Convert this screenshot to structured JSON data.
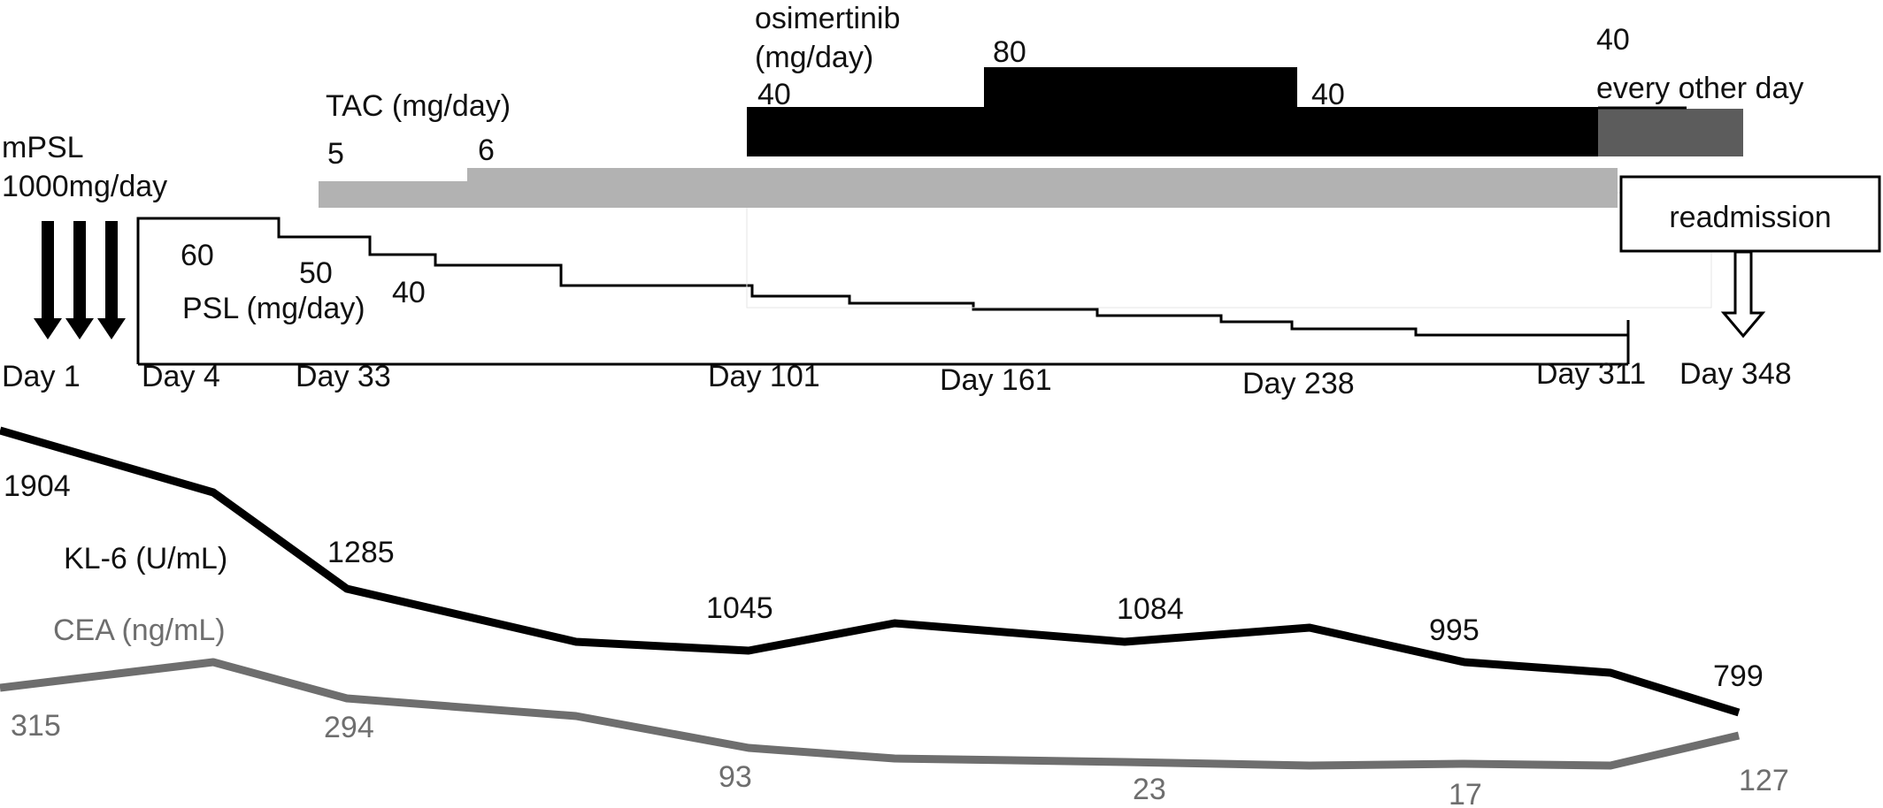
{
  "colors": {
    "black": "#000000",
    "tac": "#b2b2b2",
    "osimertinib_reduced": "#5c5c5c",
    "kl6": "#000000",
    "cea": "#6e6e6e"
  },
  "labels": {
    "mpsl_line1": "mPSL",
    "mpsl_line2": "1000mg/day",
    "tac": "TAC (mg/day)",
    "tac_dose_5": "5",
    "tac_dose_6": "6",
    "osi_line1": "osimertinib",
    "osi_line2": "(mg/day)",
    "osi_dose_40a": "40",
    "osi_dose_80": "80",
    "osi_dose_40b": "40",
    "osi_dose_40c": "40",
    "osi_every_other": "every other day",
    "psl_60": "60",
    "psl_50": "50",
    "psl_40": "40",
    "psl": "PSL (mg/day)",
    "readmission": "readmission"
  },
  "chart_data": {
    "type": "line",
    "days": [
      "Day 1",
      "Day 4",
      "Day 33",
      "Day 101",
      "Day 161",
      "Day 238",
      "Day 311",
      "Day 348"
    ],
    "series": [
      {
        "name": "KL-6 (U/mL)",
        "labeled_values": [
          "1904",
          "1285",
          "1045",
          "1084",
          "995",
          "799"
        ]
      },
      {
        "name": "CEA (ng/mL)",
        "labeled_values": [
          "315",
          "294",
          "93",
          "23",
          "17",
          "127"
        ]
      }
    ],
    "treatments": {
      "mPSL": "1000 mg/day pulse",
      "PSL_mg_day": [
        60,
        50,
        40
      ],
      "TAC_mg_day": [
        5,
        6
      ],
      "osimertinib_mg_day": [
        40,
        80,
        40,
        "40 every other day"
      ]
    },
    "event": "readmission",
    "grid": false,
    "legend": "inline"
  }
}
